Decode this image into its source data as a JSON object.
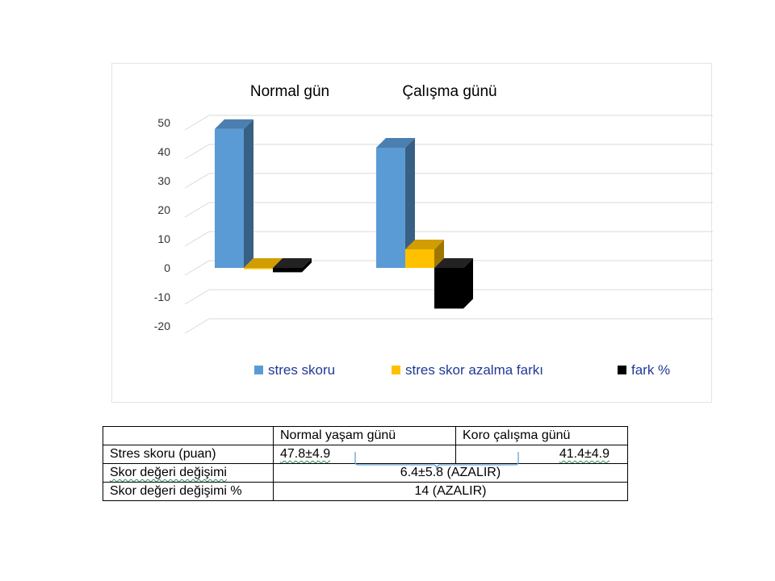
{
  "chart_data": {
    "type": "bar",
    "categories": [
      "Normal gün",
      "Çalışma günü"
    ],
    "series": [
      {
        "name": "stres skoru",
        "values": [
          47.8,
          41.4
        ],
        "color": "#5b9bd5"
      },
      {
        "name": "stres skor azalma  farkı",
        "values": [
          0,
          6.4
        ],
        "color": "#ffc000"
      },
      {
        "name": "fark %",
        "values": [
          -1.5,
          -14
        ],
        "color": "#000000"
      }
    ],
    "ylim": [
      -20,
      50
    ],
    "yticks": [
      50,
      40,
      30,
      20,
      10,
      0,
      -10,
      -20
    ],
    "grid": true,
    "legend_position": "bottom",
    "title": "",
    "xlabel": "",
    "ylabel": ""
  },
  "table": {
    "header": [
      "",
      "Normal yaşam günü",
      "Koro çalışma günü"
    ],
    "rows": [
      {
        "label": "Stres skoru (puan)",
        "normal": "47.8±4.9",
        "koro": "41.4±4.9"
      },
      {
        "label": "Skor değeri  değişimi",
        "value": "6.4±5.8 (AZALIR)"
      },
      {
        "label": "Skor değeri değişimi %",
        "value": "14 (AZALIR)"
      }
    ]
  }
}
